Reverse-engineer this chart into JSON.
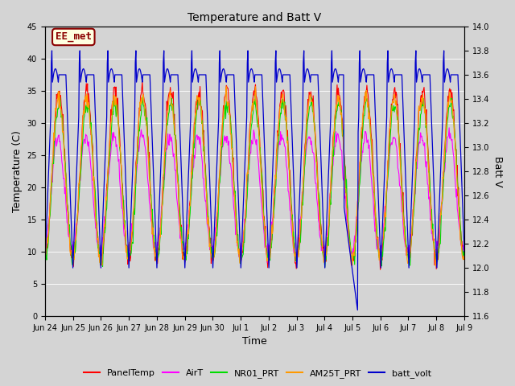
{
  "title": "Temperature and Batt V",
  "xlabel": "Time",
  "ylabel_left": "Temperature (C)",
  "ylabel_right": "Batt V",
  "annotation": "EE_met",
  "left_ylim": [
    0,
    45
  ],
  "right_ylim": [
    11.6,
    14.0
  ],
  "left_yticks": [
    0,
    5,
    10,
    15,
    20,
    25,
    30,
    35,
    40,
    45
  ],
  "right_yticks": [
    11.6,
    11.8,
    12.0,
    12.2,
    12.4,
    12.6,
    12.8,
    13.0,
    13.2,
    13.4,
    13.6,
    13.8,
    14.0
  ],
  "xtick_positions": [
    0,
    1,
    2,
    3,
    4,
    5,
    6,
    7,
    8,
    9,
    10,
    11,
    12,
    13,
    14,
    15
  ],
  "xtick_labels": [
    "Jun 24",
    "Jun 25",
    "Jun 26",
    "Jun 27",
    "Jun 28",
    "Jun 29",
    "Jun 30",
    "Jul 1",
    "Jul 2",
    "Jul 3",
    "Jul 4",
    "Jul 5",
    "Jul 6",
    "Jul 7",
    "Jul 8",
    "Jul 9"
  ],
  "series_colors": {
    "PanelTemp": "#ff0000",
    "AirT": "#ff00ff",
    "NR01_PRT": "#00dd00",
    "AM25T_PRT": "#ff9900",
    "batt_volt": "#0000cc"
  },
  "legend_labels": [
    "PanelTemp",
    "AirT",
    "NR01_PRT",
    "AM25T_PRT",
    "batt_volt"
  ],
  "bg_color": "#d4d4d4",
  "n_days": 15
}
